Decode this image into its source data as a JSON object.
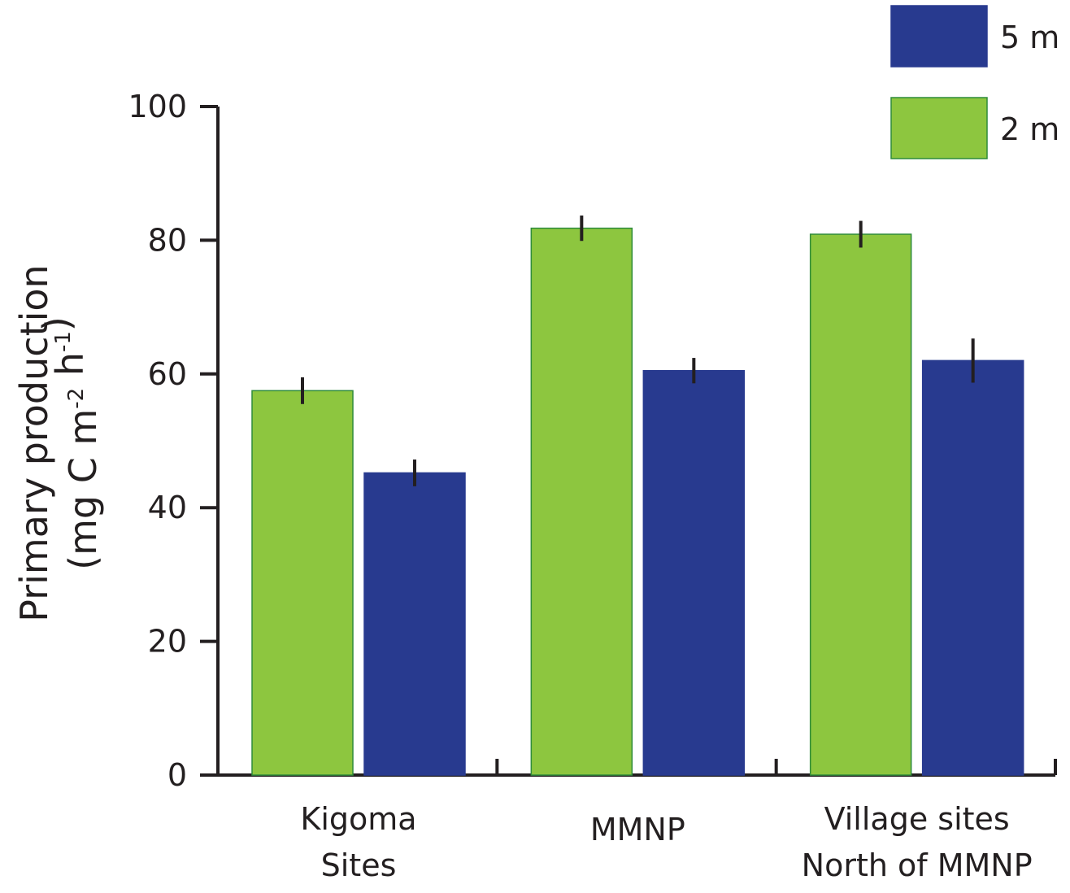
{
  "chart_data": {
    "type": "bar",
    "categories": [
      [
        "Kigoma",
        "Sites"
      ],
      [
        "MMNP"
      ],
      [
        "Village sites",
        "North of MMNP"
      ]
    ],
    "series": [
      {
        "name": "2 m",
        "color": "#8dc63f",
        "values": [
          57.5,
          81.8,
          80.9
        ],
        "errors": [
          2.0,
          1.9,
          2.0
        ]
      },
      {
        "name": "5 m",
        "color": "#283a8f",
        "values": [
          45.2,
          60.5,
          62.0
        ],
        "errors": [
          2.0,
          1.9,
          3.3
        ]
      }
    ],
    "xlabel": "",
    "ylabel": {
      "line1": "Primary production",
      "line2_prefix": "(mg C m",
      "line2_sup1": "-2",
      "line2_mid": " h",
      "line2_sup2": "-1",
      "line2_suffix": ")"
    },
    "ylim": [
      0,
      100
    ],
    "yticks": [
      "0",
      "20",
      "40",
      "60",
      "80",
      "100"
    ],
    "legend": {
      "placement": "top-right",
      "order": [
        "5 m",
        "2 m"
      ]
    },
    "grid": false
  }
}
